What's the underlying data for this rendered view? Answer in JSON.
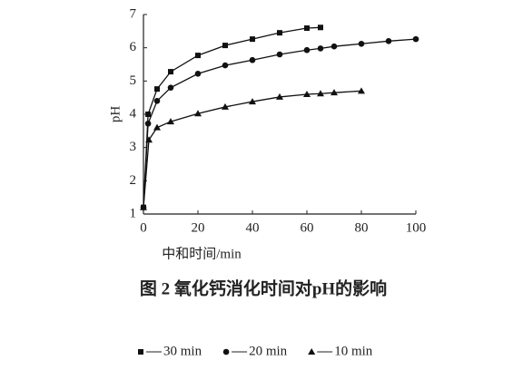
{
  "chart_data": {
    "type": "line",
    "title": "图 2  氧化钙消化时间对pH的影响",
    "x_label": "中和时间/min",
    "y_label": "pH",
    "xlim": [
      0,
      100
    ],
    "xticks": [
      0,
      20,
      40,
      60,
      80,
      100
    ],
    "ylim": [
      1,
      7
    ],
    "yticks": [
      1,
      2,
      3,
      4,
      5,
      6,
      7
    ],
    "grid": false,
    "series": [
      {
        "name": "30 min",
        "color": "#111111",
        "marker": "square",
        "x": [
          0,
          1.7,
          5,
          10,
          20,
          30,
          40,
          50,
          60,
          65
        ],
        "values": [
          1.2,
          4.0,
          4.76,
          5.28,
          5.77,
          6.07,
          6.26,
          6.45,
          6.59,
          6.61
        ]
      },
      {
        "name": "20 min",
        "color": "#111111",
        "marker": "circle",
        "x": [
          0,
          1.7,
          5,
          10,
          20,
          30,
          40,
          50,
          60,
          65,
          70,
          80,
          90,
          100
        ],
        "values": [
          1.2,
          3.72,
          4.4,
          4.8,
          5.22,
          5.47,
          5.63,
          5.8,
          5.93,
          5.98,
          6.04,
          6.12,
          6.2,
          6.26
        ]
      },
      {
        "name": "10 min",
        "color": "#111111",
        "marker": "triangle",
        "x": [
          0,
          2,
          5,
          10,
          20,
          30,
          40,
          50,
          60,
          65,
          70,
          80
        ],
        "values": [
          1.2,
          3.23,
          3.6,
          3.78,
          4.02,
          4.22,
          4.38,
          4.52,
          4.6,
          4.62,
          4.65,
          4.7
        ]
      }
    ]
  }
}
